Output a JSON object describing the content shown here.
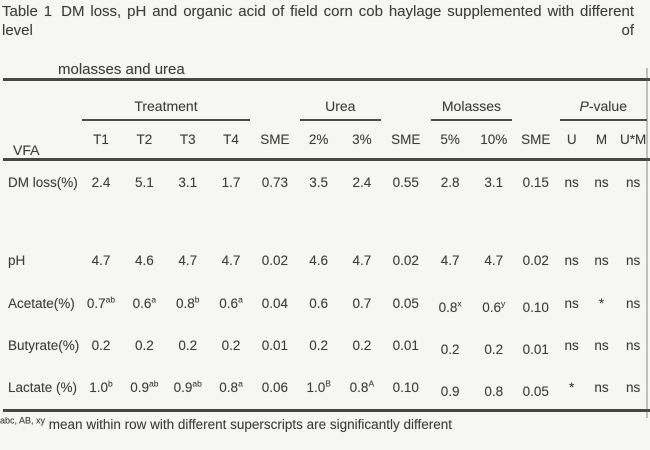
{
  "caption": {
    "label": "Table 1",
    "line1": "DM loss, pH and organic acid of field corn cob haylage supplemented with different level of",
    "line2": "molasses and urea"
  },
  "table": {
    "corner": "VFA",
    "groups": {
      "treatment": "Treatment",
      "urea": "Urea",
      "molasses": "Molasses",
      "pvalue_italic": "P",
      "pvalue_rest": "-value"
    },
    "subheaders": [
      "T1",
      "T2",
      "T3",
      "T4",
      "SME",
      "2%",
      "3%",
      "SME",
      "5%",
      "10%",
      "SME",
      "U",
      "M",
      "U*M"
    ],
    "rows": [
      {
        "label": "DM loss(%)",
        "values": [
          "2.4",
          "5.1",
          "3.1",
          "1.7",
          "0.73",
          "3.5",
          "2.4",
          "0.55",
          "2.8",
          "3.1",
          "0.15",
          "ns",
          "ns",
          "ns"
        ]
      },
      {
        "label": "pH",
        "values": [
          "4.7",
          "4.6",
          "4.7",
          "4.7",
          "0.02",
          "4.6",
          "4.7",
          "0.02",
          "4.7",
          "4.7",
          "0.02",
          "ns",
          "ns",
          "ns"
        ]
      },
      {
        "label": "Acetate(%)",
        "values": [
          "0.7^ab",
          "0.6^a",
          "0.8^b",
          "0.6^a",
          "0.04",
          "0.6",
          "0.7",
          "0.05",
          "0.8^x",
          "0.6^y",
          "0.10",
          "ns",
          "*",
          "ns"
        ]
      },
      {
        "label": "Butyrate(%)",
        "values": [
          "0.2",
          "0.2",
          "0.2",
          "0.2",
          "0.01",
          "0.2",
          "0.2",
          "0.01",
          "0.2",
          "0.2",
          "0.01",
          "ns",
          "ns",
          "ns"
        ]
      },
      {
        "label": "Lactate (%)",
        "values": [
          "1.0^b",
          "0.9^ab",
          "0.9^ab",
          "0.8^a",
          "0.06",
          "1.0^B",
          "0.8^A",
          "0.10",
          "0.9",
          "0.8",
          "0.05",
          "*",
          "ns",
          "ns"
        ]
      }
    ]
  },
  "footnote": {
    "sup": "abc, AB, xy",
    "text": "mean  within row with different superscripts are significantly different"
  },
  "colors": {
    "paper_bg": "#f6f6f4",
    "ink": "#3e3e3e",
    "rule": "#464646"
  }
}
